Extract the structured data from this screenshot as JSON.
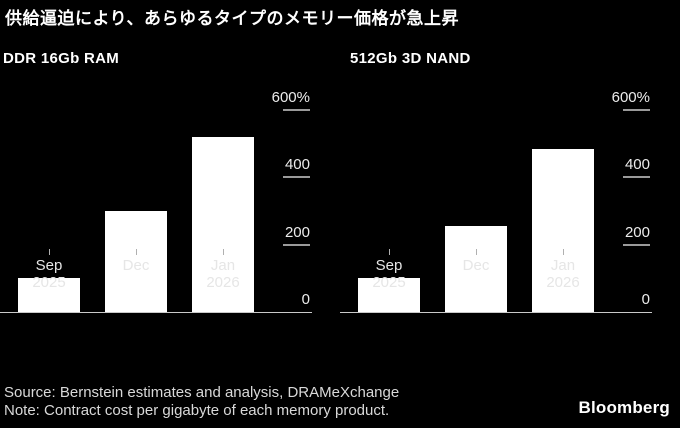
{
  "page": {
    "title": "供給逼迫により、あらゆるタイプのメモリー価格が急上昇"
  },
  "footer": {
    "source": "Source: Bernstein estimates and analysis, DRAMeXchange",
    "note": "Note: Contract cost per gigabyte of each memory product.",
    "brand": "Bloomberg"
  },
  "colors": {
    "background": "#000000",
    "bar": "#ffffff",
    "title_text": "#ffffff",
    "muted_text": "#d9d9d9",
    "axis_line": "#c9c9c9",
    "tick_dash": "#9a9a9a",
    "tick_label": "#ececec"
  },
  "chart_data": [
    {
      "type": "bar",
      "title": "DDR 16Gb RAM",
      "categories": [
        "Sep 2025",
        "Dec",
        "Jan 2026"
      ],
      "values": [
        100,
        300,
        520
      ],
      "unit": "%",
      "xlabel": "",
      "ylabel": "",
      "ylim": [
        0,
        600
      ],
      "yticks": [
        0,
        200,
        400,
        600
      ],
      "ytick_labels": [
        "0",
        "200",
        "400",
        "600%"
      ],
      "grid": "off",
      "legend": "none",
      "axis_side": "right"
    },
    {
      "type": "bar",
      "title": "512Gb 3D NAND",
      "categories": [
        "Sep 2025",
        "Dec",
        "Jan 2026"
      ],
      "values": [
        100,
        255,
        485
      ],
      "unit": "%",
      "xlabel": "",
      "ylabel": "",
      "ylim": [
        0,
        600
      ],
      "yticks": [
        0,
        200,
        400,
        600
      ],
      "ytick_labels": [
        "0",
        "200",
        "400",
        "600%"
      ],
      "grid": "off",
      "legend": "none",
      "axis_side": "right"
    }
  ]
}
